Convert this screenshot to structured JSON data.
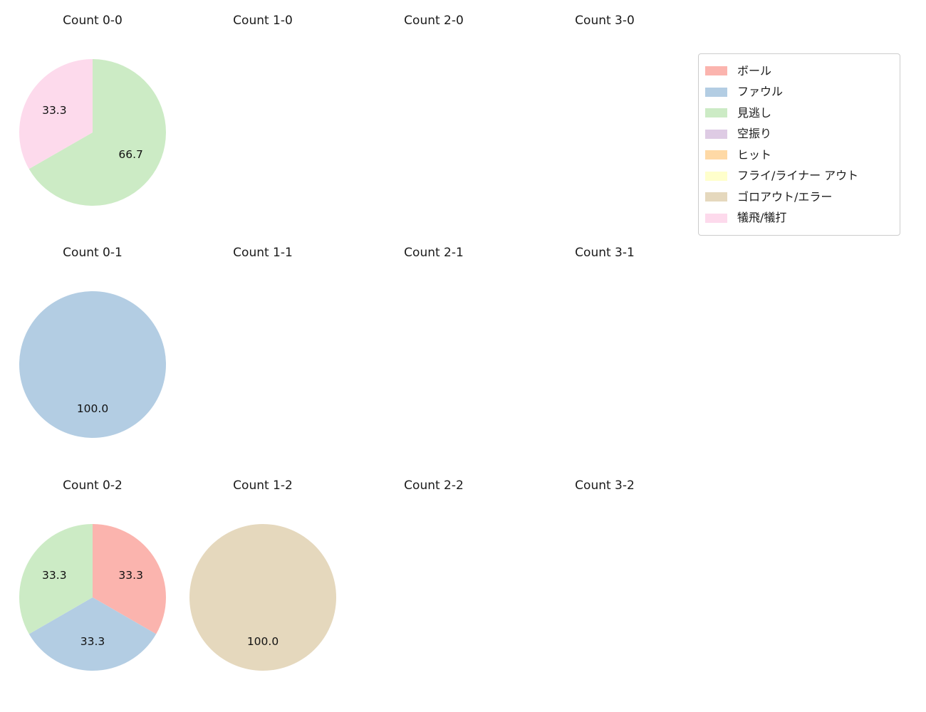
{
  "legend": {
    "position": "upper right",
    "items": [
      {
        "label": "ボール",
        "color": "#fbb4ae"
      },
      {
        "label": "ファウル",
        "color": "#b3cde3"
      },
      {
        "label": "見逃し",
        "color": "#ccebc5"
      },
      {
        "label": "空振り",
        "color": "#decbe4"
      },
      {
        "label": "ヒット",
        "color": "#fed9a6"
      },
      {
        "label": "フライ/ライナー アウト",
        "color": "#ffffcc"
      },
      {
        "label": "ゴロアウト/エラー",
        "color": "#e5d8bd"
      },
      {
        "label": "犠飛/犠打",
        "color": "#fddaec"
      }
    ]
  },
  "chart_data": [
    {
      "type": "pie",
      "title": "Count 0-0",
      "start_angle": 90,
      "direction": "clockwise",
      "slices": [
        {
          "label": "見逃し",
          "value": 66.7
        },
        {
          "label": "犠飛/犠打",
          "value": 33.3
        }
      ]
    },
    {
      "type": "pie",
      "title": "Count 1-0",
      "start_angle": 90,
      "direction": "clockwise",
      "slices": []
    },
    {
      "type": "pie",
      "title": "Count 2-0",
      "start_angle": 90,
      "direction": "clockwise",
      "slices": []
    },
    {
      "type": "pie",
      "title": "Count 3-0",
      "start_angle": 90,
      "direction": "clockwise",
      "slices": []
    },
    {
      "type": "pie",
      "title": "Count 0-1",
      "start_angle": 90,
      "direction": "clockwise",
      "slices": [
        {
          "label": "ファウル",
          "value": 100.0
        }
      ]
    },
    {
      "type": "pie",
      "title": "Count 1-1",
      "start_angle": 90,
      "direction": "clockwise",
      "slices": []
    },
    {
      "type": "pie",
      "title": "Count 2-1",
      "start_angle": 90,
      "direction": "clockwise",
      "slices": []
    },
    {
      "type": "pie",
      "title": "Count 3-1",
      "start_angle": 90,
      "direction": "clockwise",
      "slices": []
    },
    {
      "type": "pie",
      "title": "Count 0-2",
      "start_angle": 90,
      "direction": "clockwise",
      "slices": [
        {
          "label": "ボール",
          "value": 33.3
        },
        {
          "label": "ファウル",
          "value": 33.3
        },
        {
          "label": "見逃し",
          "value": 33.3
        }
      ]
    },
    {
      "type": "pie",
      "title": "Count 1-2",
      "start_angle": 90,
      "direction": "clockwise",
      "slices": [
        {
          "label": "ゴロアウト/エラー",
          "value": 100.0
        }
      ]
    },
    {
      "type": "pie",
      "title": "Count 2-2",
      "start_angle": 90,
      "direction": "clockwise",
      "slices": []
    },
    {
      "type": "pie",
      "title": "Count 3-2",
      "start_angle": 90,
      "direction": "clockwise",
      "slices": []
    }
  ]
}
